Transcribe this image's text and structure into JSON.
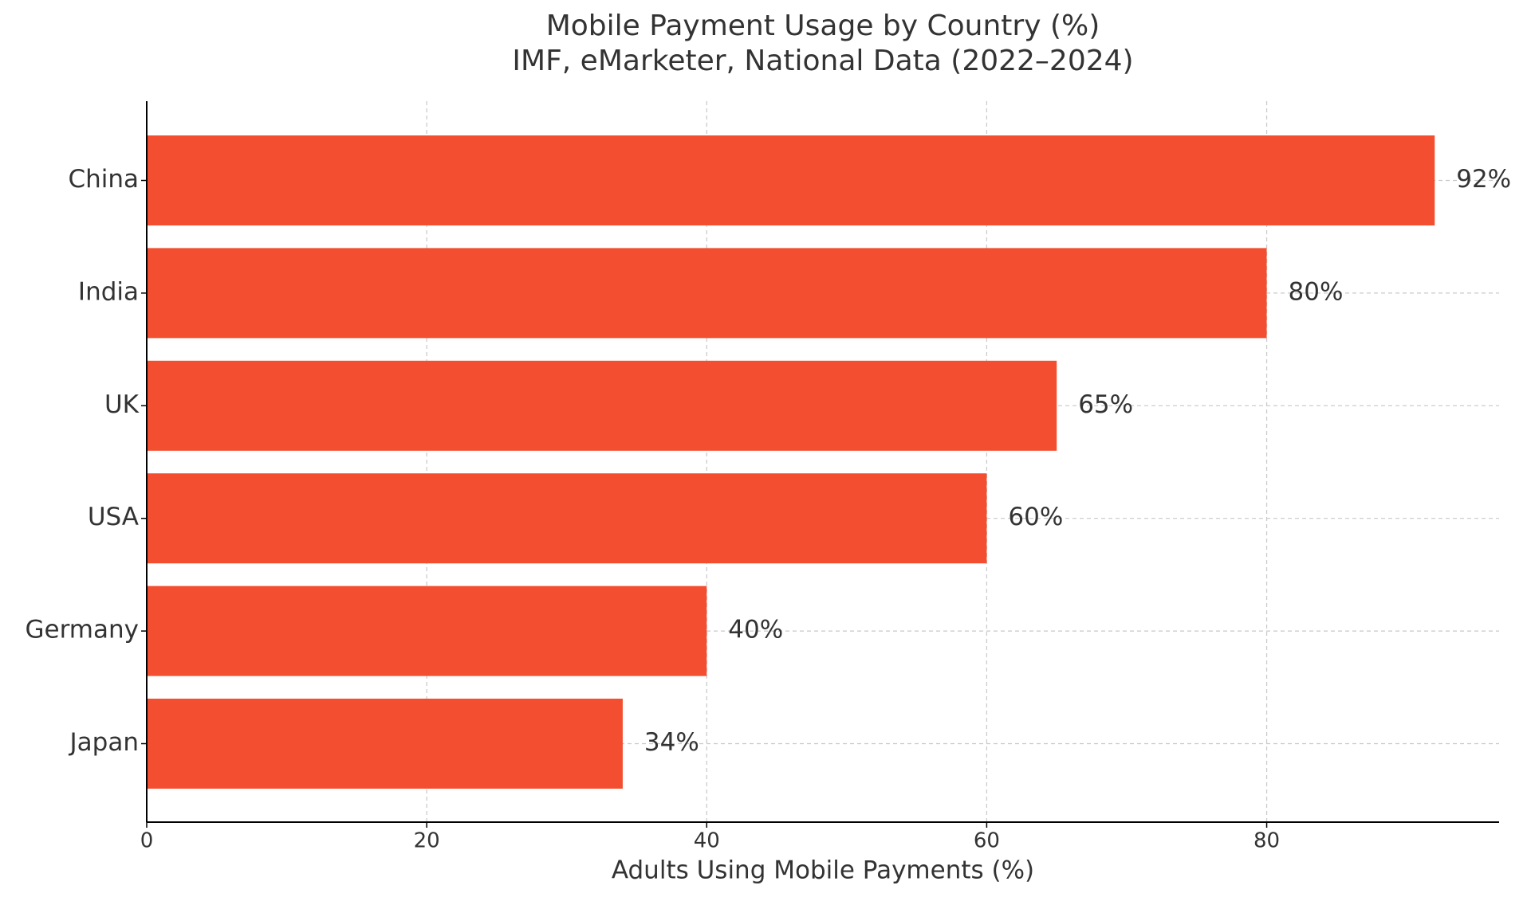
{
  "chart_data": {
    "type": "barh",
    "title": "Mobile Payment Usage by Country (%)",
    "subtitle": "IMF, eMarketer, National Data (2022–2024)",
    "x_label": "Adults Using Mobile Payments (%)",
    "categories": [
      "China",
      "India",
      "UK",
      "USA",
      "Germany",
      "Japan"
    ],
    "values": [
      92,
      80,
      65,
      60,
      40,
      34
    ],
    "value_labels": [
      "92%",
      "80%",
      "65%",
      "60%",
      "40%",
      "34%"
    ],
    "color": "#f24e2f",
    "xlim": [
      0,
      96.6
    ],
    "xticks": [
      0,
      20,
      40,
      60,
      80
    ],
    "grid": true
  }
}
